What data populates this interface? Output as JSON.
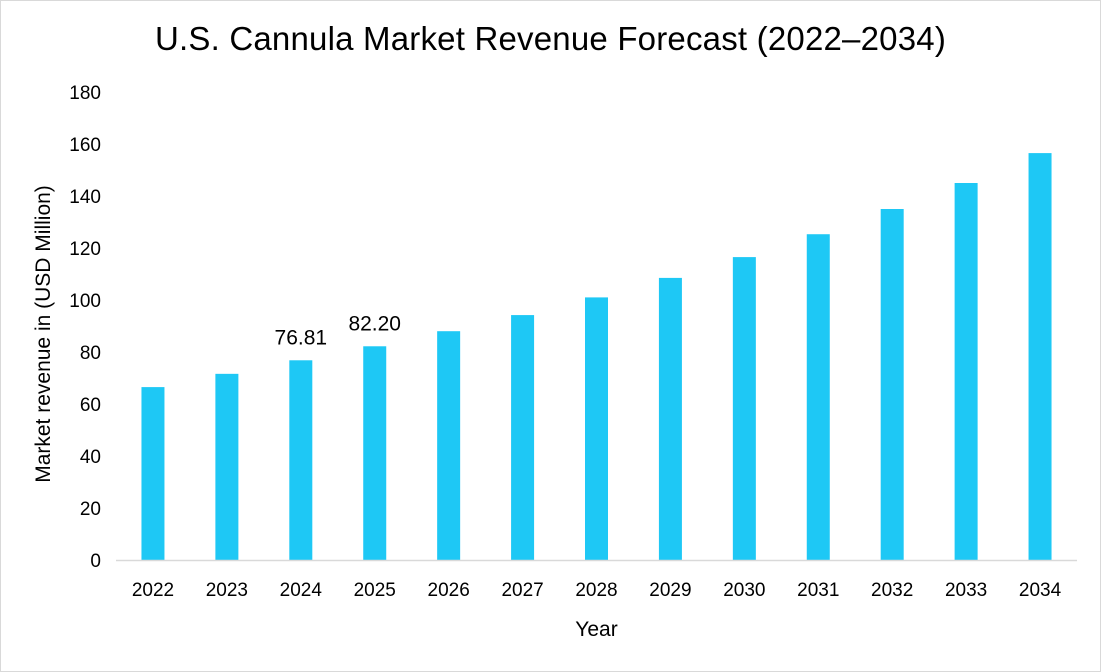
{
  "chart_data": {
    "type": "bar",
    "title": "U.S. Cannula Market Revenue Forecast (2022–2034)",
    "xlabel": "Year",
    "ylabel": "Market revenue in (USD Million)",
    "categories": [
      "2022",
      "2023",
      "2024",
      "2025",
      "2026",
      "2027",
      "2028",
      "2029",
      "2030",
      "2031",
      "2032",
      "2033",
      "2034"
    ],
    "values": [
      66.5,
      71.6,
      76.81,
      82.2,
      88.0,
      94.2,
      101.0,
      108.5,
      116.5,
      125.3,
      135.0,
      145.0,
      156.5
    ],
    "data_labels": [
      {
        "category": "2024",
        "text": "76.81"
      },
      {
        "category": "2025",
        "text": "82.20"
      }
    ],
    "ylim": [
      0,
      180
    ],
    "yticks": [
      0,
      20,
      40,
      60,
      80,
      100,
      120,
      140,
      160,
      180
    ],
    "grid": false,
    "bar_color": "#1EC8F5",
    "axis_color": "#d9d9d9"
  }
}
